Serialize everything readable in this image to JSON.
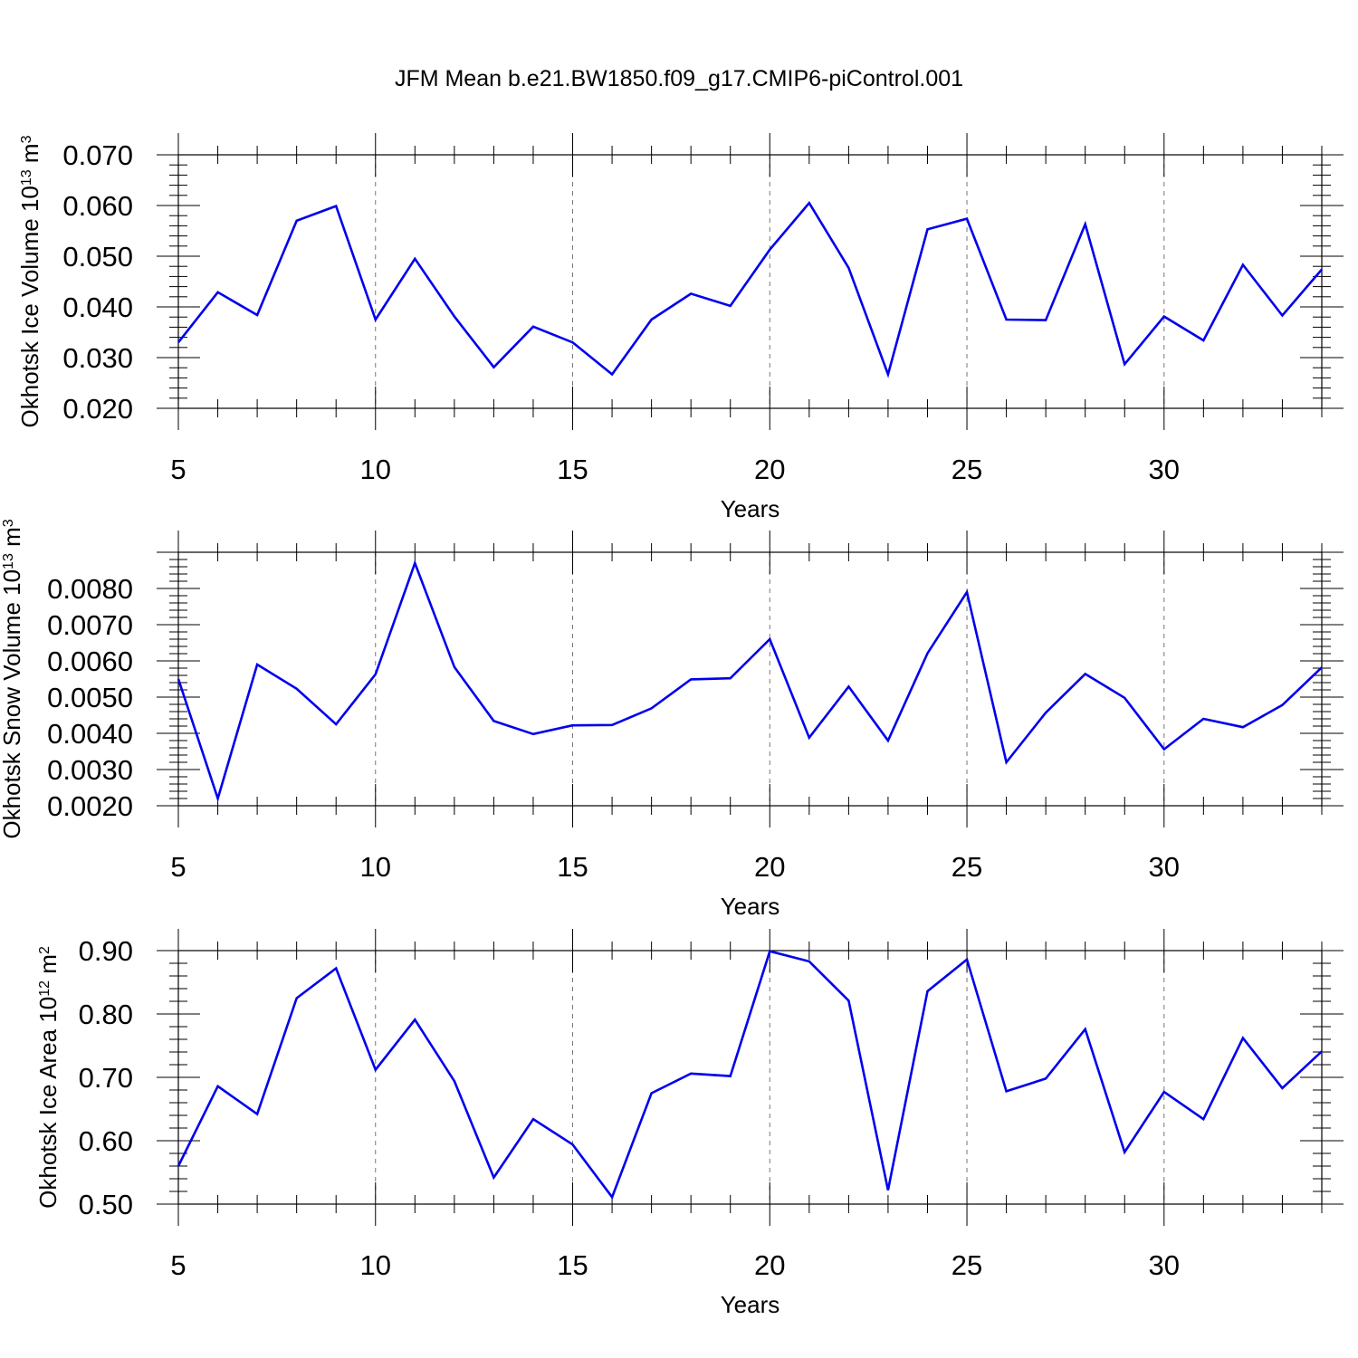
{
  "figure": {
    "title": "JFM Mean b.e21.BW1850.f09_g17.CMIP6-piControl.001",
    "line_color": "#0000ee"
  },
  "chart_data": [
    {
      "type": "line",
      "ylabel_main": "Okhotsk Ice Volume 10",
      "ylabel_exp": "13",
      "ylabel_unit": "m",
      "ylabel_unit_exp": "3",
      "xlabel": "Years",
      "xlim": [
        5,
        34
      ],
      "ylim": [
        0.02,
        0.07
      ],
      "x_ticks": [
        5,
        10,
        15,
        20,
        25,
        30
      ],
      "x_tick_labels": [
        "5",
        "10",
        "15",
        "20",
        "25",
        "30"
      ],
      "y_ticks": [
        0.02,
        0.03,
        0.04,
        0.05,
        0.06,
        0.07
      ],
      "y_tick_labels": [
        "0.020",
        "0.030",
        "0.040",
        "0.050",
        "0.060",
        "0.070"
      ],
      "grid": "dashed vertical lines at major x ticks",
      "x": [
        5,
        6,
        7,
        8,
        9,
        10,
        11,
        12,
        13,
        14,
        15,
        16,
        17,
        18,
        19,
        20,
        21,
        22,
        23,
        24,
        25,
        26,
        27,
        28,
        29,
        30,
        31,
        32,
        33,
        34
      ],
      "y": [
        0.033,
        0.0429,
        0.0384,
        0.057,
        0.0599,
        0.0375,
        0.0495,
        0.0381,
        0.0281,
        0.0361,
        0.033,
        0.0267,
        0.0375,
        0.0426,
        0.0402,
        0.0513,
        0.0605,
        0.0477,
        0.0267,
        0.0553,
        0.0574,
        0.0375,
        0.0374,
        0.0563,
        0.0287,
        0.0381,
        0.0334,
        0.0483,
        0.0383,
        0.0474
      ]
    },
    {
      "type": "line",
      "ylabel_main": "Okhotsk Snow Volume 10",
      "ylabel_exp": "13",
      "ylabel_unit": "m",
      "ylabel_unit_exp": "3",
      "xlabel": "Years",
      "xlim": [
        5,
        34
      ],
      "ylim": [
        0.002,
        0.009
      ],
      "x_ticks": [
        5,
        10,
        15,
        20,
        25,
        30
      ],
      "x_tick_labels": [
        "5",
        "10",
        "15",
        "20",
        "25",
        "30"
      ],
      "y_ticks": [
        0.002,
        0.003,
        0.004,
        0.005,
        0.006,
        0.007,
        0.008
      ],
      "y_tick_labels": [
        "0.0020",
        "0.0030",
        "0.0040",
        "0.0050",
        "0.0060",
        "0.0070",
        "0.0080"
      ],
      "grid": "dashed vertical lines at major x ticks",
      "x": [
        5,
        6,
        7,
        8,
        9,
        10,
        11,
        12,
        13,
        14,
        15,
        16,
        17,
        18,
        19,
        20,
        21,
        22,
        23,
        24,
        25,
        26,
        27,
        28,
        29,
        30,
        31,
        32,
        33,
        34
      ],
      "y": [
        0.0055,
        0.0022,
        0.0059,
        0.00523,
        0.00425,
        0.00563,
        0.0087,
        0.00583,
        0.00434,
        0.00398,
        0.00422,
        0.00423,
        0.00469,
        0.00549,
        0.00552,
        0.0066,
        0.00388,
        0.00529,
        0.0038,
        0.00621,
        0.0079,
        0.0032,
        0.00457,
        0.00564,
        0.00498,
        0.00356,
        0.0044,
        0.00417,
        0.00478,
        0.00582
      ]
    },
    {
      "type": "line",
      "ylabel_main": "Okhotsk Ice Area 10",
      "ylabel_exp": "12",
      "ylabel_unit": "m",
      "ylabel_unit_exp": "2",
      "xlabel": "Years",
      "xlim": [
        5,
        34
      ],
      "ylim": [
        0.5,
        0.9
      ],
      "x_ticks": [
        5,
        10,
        15,
        20,
        25,
        30
      ],
      "x_tick_labels": [
        "5",
        "10",
        "15",
        "20",
        "25",
        "30"
      ],
      "y_ticks": [
        0.5,
        0.6,
        0.7,
        0.8,
        0.9
      ],
      "y_tick_labels": [
        "0.50",
        "0.60",
        "0.70",
        "0.80",
        "0.90"
      ],
      "grid": "dashed vertical lines at major x ticks",
      "x": [
        5,
        6,
        7,
        8,
        9,
        10,
        11,
        12,
        13,
        14,
        15,
        16,
        17,
        18,
        19,
        20,
        21,
        22,
        23,
        24,
        25,
        26,
        27,
        28,
        29,
        30,
        31,
        32,
        33,
        34
      ],
      "y": [
        0.56,
        0.686,
        0.642,
        0.825,
        0.872,
        0.712,
        0.791,
        0.694,
        0.542,
        0.634,
        0.594,
        0.511,
        0.675,
        0.706,
        0.702,
        0.899,
        0.883,
        0.821,
        0.522,
        0.836,
        0.886,
        0.678,
        0.698,
        0.776,
        0.582,
        0.677,
        0.634,
        0.762,
        0.683,
        0.741
      ]
    }
  ]
}
